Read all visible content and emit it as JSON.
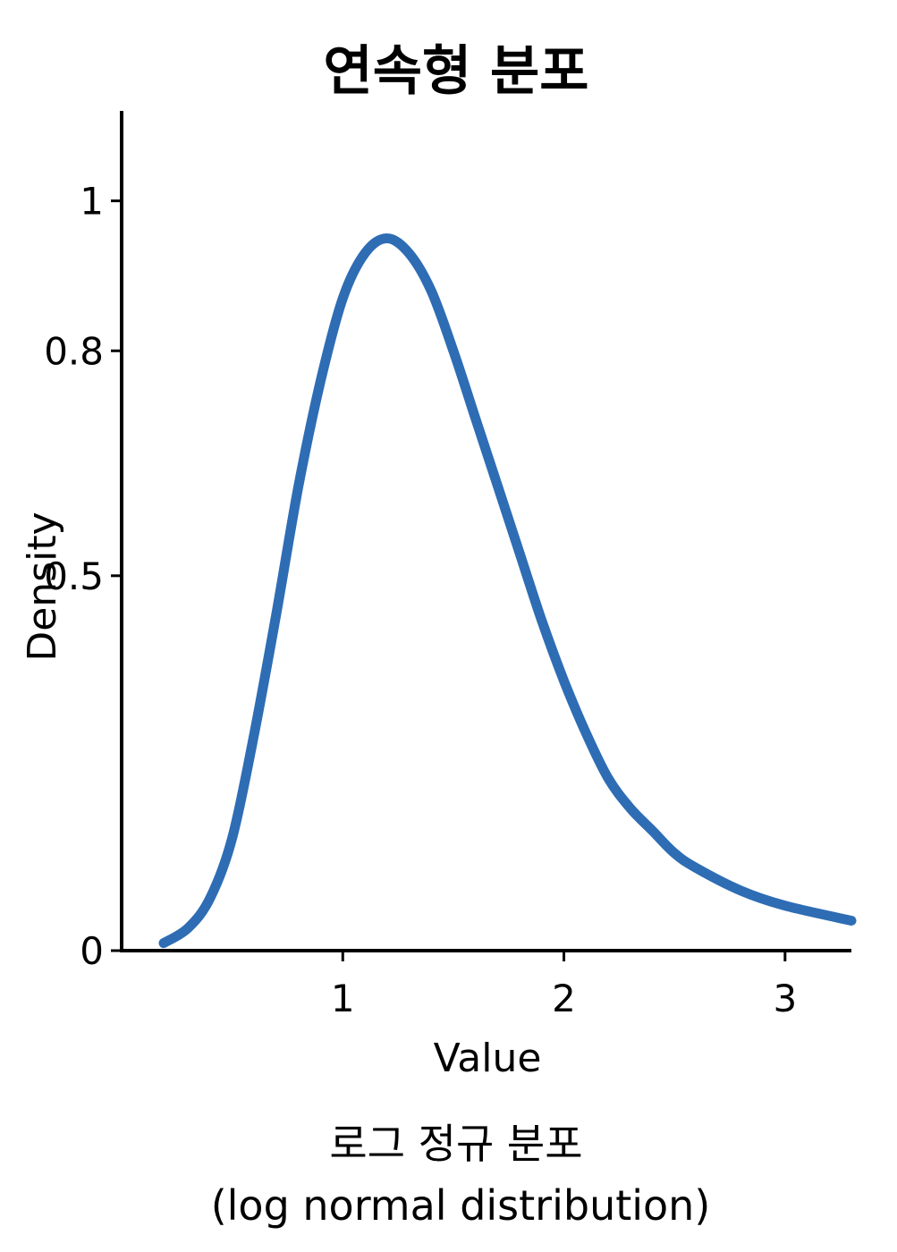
{
  "chart_data": {
    "type": "line",
    "title": "연속형 분포",
    "xlabel": "Value",
    "ylabel": "Density",
    "xlim": [
      0,
      3.3
    ],
    "ylim": [
      0,
      1.12
    ],
    "xticks": [
      {
        "value": 1,
        "label": "1"
      },
      {
        "value": 2,
        "label": "2"
      },
      {
        "value": 3,
        "label": "3"
      }
    ],
    "yticks": [
      {
        "value": 0,
        "label": "0"
      },
      {
        "value": 0.5,
        "label": "0.5"
      },
      {
        "value": 0.8,
        "label": "0.8"
      },
      {
        "value": 1,
        "label": "1"
      }
    ],
    "grid": false,
    "series": [
      {
        "color": "#2e6db4",
        "x": [
          0.19,
          0.3,
          0.4,
          0.5,
          0.6,
          0.7,
          0.8,
          0.9,
          1.0,
          1.1,
          1.2,
          1.3,
          1.4,
          1.5,
          1.6,
          1.7,
          1.8,
          1.9,
          2.0,
          2.1,
          2.2,
          2.3,
          2.4,
          2.5,
          2.6,
          2.8,
          3.0,
          3.3
        ],
        "y": [
          0.01,
          0.03,
          0.07,
          0.15,
          0.29,
          0.45,
          0.62,
          0.76,
          0.87,
          0.93,
          0.95,
          0.93,
          0.88,
          0.8,
          0.71,
          0.62,
          0.53,
          0.44,
          0.36,
          0.29,
          0.23,
          0.19,
          0.16,
          0.13,
          0.11,
          0.08,
          0.06,
          0.04
        ]
      }
    ]
  },
  "caption": {
    "line1": "로그 정규 분포",
    "line2": "(log normal distribution)"
  }
}
